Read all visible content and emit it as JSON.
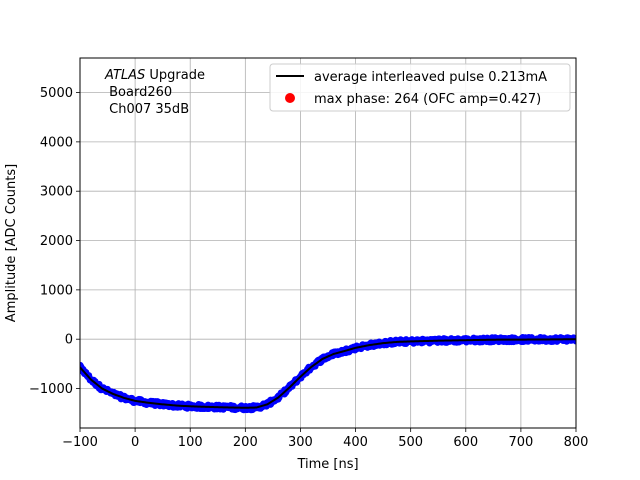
{
  "chart_data": {
    "type": "scatter",
    "xlabel": "Time [ns]",
    "ylabel": "Amplitude [ADC Counts]",
    "xlim": [
      -100,
      800
    ],
    "ylim": [
      -1800,
      5700
    ],
    "xticks": [
      -100,
      0,
      100,
      200,
      300,
      400,
      500,
      600,
      700,
      800
    ],
    "yticks": [
      -1000,
      0,
      1000,
      2000,
      3000,
      4000,
      5000
    ],
    "grid": true,
    "legend_position": "top-right",
    "annotation": {
      "lines": [
        {
          "italic": "ATLAS",
          "rest": " Upgrade"
        },
        {
          "italic": "",
          "rest": " Board260"
        },
        {
          "italic": "",
          "rest": " Ch007 35dB"
        }
      ]
    },
    "series": [
      {
        "name": "average interleaved pulse 0.213mA",
        "kind": "line",
        "color": "#000000",
        "x": [
          -100,
          -80,
          -60,
          -40,
          -20,
          0,
          25,
          50,
          75,
          100,
          125,
          150,
          175,
          200,
          220,
          240,
          260,
          280,
          300,
          320,
          340,
          360,
          380,
          400,
          425,
          450,
          475,
          500,
          550,
          600,
          650,
          700,
          750,
          800
        ],
        "y": [
          -570,
          -820,
          -1000,
          -1110,
          -1190,
          -1250,
          -1290,
          -1320,
          -1345,
          -1360,
          -1370,
          -1378,
          -1385,
          -1390,
          -1385,
          -1320,
          -1180,
          -980,
          -760,
          -560,
          -400,
          -300,
          -240,
          -175,
          -120,
          -80,
          -55,
          -45,
          -30,
          -20,
          -10,
          -8,
          -5,
          0
        ]
      },
      {
        "name": "max phase: 264 (OFC amp=0.427)",
        "kind": "marker",
        "color": "#ff0000",
        "x": [],
        "y": []
      },
      {
        "name": "samples",
        "kind": "scatter",
        "color": "#0000ff",
        "noise": 45
      }
    ]
  }
}
